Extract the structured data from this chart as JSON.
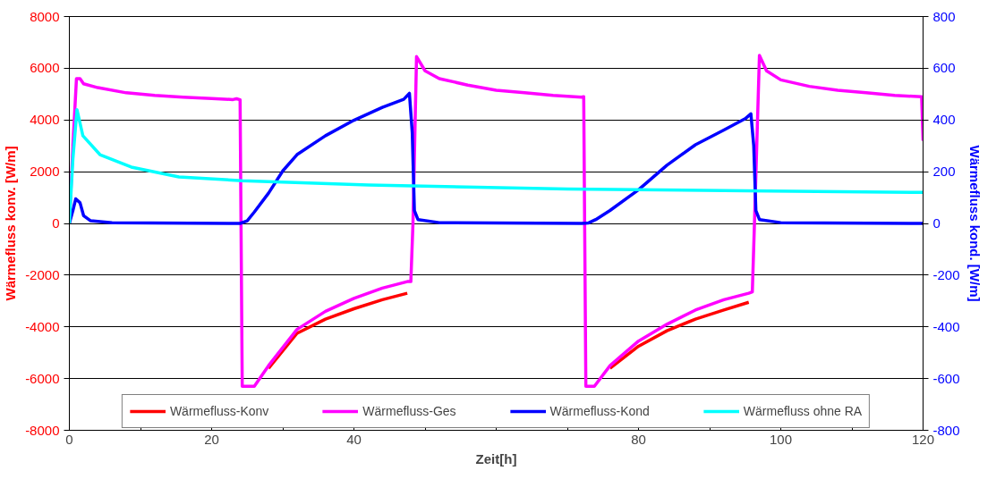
{
  "chart_data": {
    "type": "line",
    "xlabel": "Zeit[h]",
    "ylabel": "Wärmefluss konv. [W/m]",
    "y2label": "Wärmefluss kond. [W/m]",
    "xlim": [
      0,
      120
    ],
    "ylim": [
      -8000,
      8000
    ],
    "y2lim": [
      -800,
      800
    ],
    "xticks": [
      0,
      {
        "value": 10,
        "label": null
      },
      20,
      {
        "value": 30,
        "label": null
      },
      40,
      {
        "value": 50,
        "label": null
      },
      {
        "value": 60,
        "label": null
      },
      {
        "value": 70,
        "label": null
      },
      80,
      {
        "value": 90,
        "label": null
      },
      100,
      {
        "value": 110,
        "label": null
      },
      120
    ],
    "yticks": [
      -8000,
      -6000,
      -4000,
      -2000,
      0,
      2000,
      4000,
      6000,
      8000
    ],
    "y2ticks": [
      -800,
      -600,
      -400,
      -200,
      0,
      200,
      400,
      600,
      800
    ],
    "grid": "y",
    "legend": "bottom",
    "marker": "none",
    "line_style": "solid",
    "series": [
      {
        "name": "Wärmefluss-Konv",
        "color": "#ff0000",
        "x": [
          28,
          32,
          36,
          40,
          44,
          47.5,
          60,
          76,
          80,
          84,
          88,
          92,
          95.5
        ],
        "values": [
          -5600,
          -4250,
          -3700,
          -3300,
          -2950,
          -2700,
          null,
          -5600,
          -4750,
          -4150,
          -3700,
          -3350,
          -3050
        ]
      },
      {
        "name": "Wärmefluss-Ges",
        "color": "#ff00ff",
        "x": [
          0,
          0.5,
          1,
          1.5,
          2,
          4,
          8,
          12,
          16,
          20,
          23,
          23.5,
          24,
          24.3,
          26,
          28,
          32,
          36,
          40,
          44,
          47.5,
          48,
          48.3,
          48.8,
          50,
          52,
          56,
          60,
          64,
          68,
          72,
          72.3,
          72.6,
          73.8,
          76,
          80,
          84,
          88,
          92,
          95.5,
          96,
          96.3,
          97,
          98,
          100,
          104,
          108,
          112,
          116,
          119.8,
          120
        ],
        "values": [
          0,
          3000,
          5600,
          5600,
          5400,
          5250,
          5050,
          4950,
          4880,
          4830,
          4790,
          4820,
          4780,
          -6300,
          -6300,
          -5500,
          -4100,
          -3400,
          -2900,
          -2500,
          -2250,
          -2250,
          0,
          6450,
          5900,
          5600,
          5350,
          5150,
          5050,
          4950,
          4880,
          4900,
          -6300,
          -6300,
          -5500,
          -4550,
          -3900,
          -3350,
          -2950,
          -2700,
          -2650,
          0,
          6500,
          5900,
          5550,
          5300,
          5150,
          5050,
          4950,
          4900,
          3200
        ]
      },
      {
        "name": "Wärmefluss-Kond",
        "color": "#0000ff",
        "axis": "y2",
        "x": [
          0,
          0.5,
          0.9,
          1.5,
          2,
          3,
          6,
          24,
          25,
          26,
          28,
          30,
          32,
          36,
          40,
          44,
          47,
          47.8,
          48.2,
          48.5,
          49,
          52,
          72,
          73,
          74,
          76,
          80,
          84,
          88,
          92,
          95,
          95.8,
          96.2,
          96.5,
          97,
          100,
          120
        ],
        "values": [
          0,
          50,
          95,
          80,
          30,
          10,
          3,
          0,
          10,
          44,
          117,
          203,
          266,
          339,
          399,
          449,
          480,
          503,
          350,
          50,
          15,
          3,
          0,
          2,
          15,
          50,
          130,
          225,
          304,
          361,
          405,
          424,
          300,
          50,
          15,
          3,
          0
        ]
      },
      {
        "name": "Wärmefluss ohne RA",
        "color": "#00ffff",
        "x": [
          0,
          0.5,
          1.07,
          1.9,
          4.3,
          8.7,
          15.4,
          24.3,
          42,
          70,
          95,
          120
        ],
        "values": [
          0,
          2500,
          4400,
          3390,
          2660,
          2180,
          1800,
          1650,
          1490,
          1330,
          1260,
          1200
        ]
      }
    ]
  }
}
